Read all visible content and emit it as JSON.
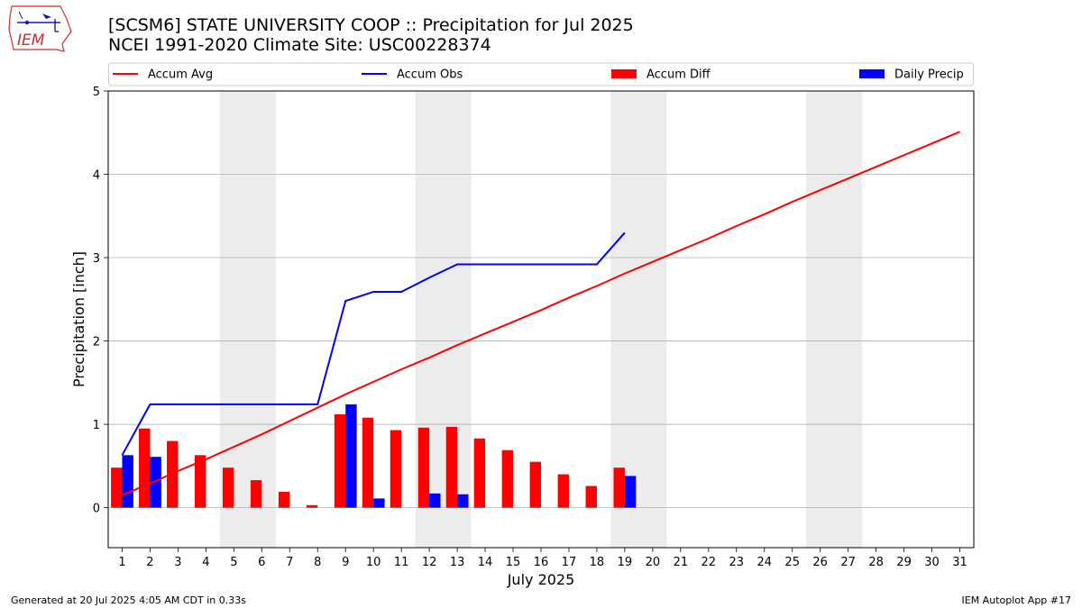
{
  "header": {
    "title_line1": "[SCSM6] STATE UNIVERSITY COOP :: Precipitation for Jul 2025",
    "title_line2": "NCEI 1991-2020 Climate Site: USC00228374",
    "logo_text": "IEM"
  },
  "footer": {
    "generated": "Generated at 20 Jul 2025 4:05 AM CDT in 0.33s",
    "app": "IEM Autoplot App #17"
  },
  "colors": {
    "avg": "#ff0000",
    "obs": "#0000ff",
    "diff": "#ff0000",
    "daily": "#0000ff",
    "weekend": "#ececec",
    "grid": "#b0b0b0"
  },
  "chart_data": {
    "type": "bar",
    "xlabel": "July 2025",
    "ylabel": "Precipitation [inch]",
    "ylim": [
      -0.48,
      5
    ],
    "yticks": [
      0,
      1,
      2,
      3,
      4,
      5
    ],
    "grid": "horizontal",
    "legend_position": "top",
    "legend": [
      "Accum Avg",
      "Accum Obs",
      "Accum Diff",
      "Daily Precip"
    ],
    "days": [
      1,
      2,
      3,
      4,
      5,
      6,
      7,
      8,
      9,
      10,
      11,
      12,
      13,
      14,
      15,
      16,
      17,
      18,
      19,
      20,
      21,
      22,
      23,
      24,
      25,
      26,
      27,
      28,
      29,
      30,
      31
    ],
    "weekend_days": [
      5,
      6,
      12,
      13,
      19,
      20,
      26,
      27
    ],
    "series": [
      {
        "name": "Accum Avg",
        "kind": "line",
        "x": [
          1,
          2,
          3,
          4,
          5,
          6,
          7,
          8,
          9,
          10,
          11,
          12,
          13,
          14,
          15,
          16,
          17,
          18,
          19,
          20,
          21,
          22,
          23,
          24,
          25,
          26,
          27,
          28,
          29,
          30,
          31
        ],
        "values": [
          0.15,
          0.29,
          0.44,
          0.58,
          0.73,
          0.88,
          1.04,
          1.2,
          1.36,
          1.51,
          1.66,
          1.8,
          1.95,
          2.09,
          2.23,
          2.37,
          2.52,
          2.66,
          2.81,
          2.95,
          3.09,
          3.23,
          3.38,
          3.52,
          3.67,
          3.81,
          3.95,
          4.09,
          4.23,
          4.37,
          4.51
        ]
      },
      {
        "name": "Accum Obs",
        "kind": "line",
        "x": [
          1,
          2,
          3,
          4,
          5,
          6,
          7,
          8,
          9,
          10,
          11,
          12,
          13,
          14,
          15,
          16,
          17,
          18,
          19
        ],
        "values": [
          0.63,
          1.24,
          1.24,
          1.24,
          1.24,
          1.24,
          1.24,
          1.24,
          2.48,
          2.59,
          2.59,
          2.76,
          2.92,
          2.92,
          2.92,
          2.92,
          2.92,
          2.92,
          3.3
        ]
      },
      {
        "name": "Accum Diff",
        "kind": "bar",
        "x": [
          1,
          2,
          3,
          4,
          5,
          6,
          7,
          8,
          9,
          10,
          11,
          12,
          13,
          14,
          15,
          16,
          17,
          18,
          19
        ],
        "values": [
          0.48,
          0.95,
          0.8,
          0.63,
          0.48,
          0.33,
          0.19,
          0.03,
          1.12,
          1.08,
          0.93,
          0.96,
          0.97,
          0.83,
          0.69,
          0.55,
          0.4,
          0.26,
          0.48
        ]
      },
      {
        "name": "Daily Precip",
        "kind": "bar",
        "x": [
          1,
          2,
          3,
          4,
          5,
          6,
          7,
          8,
          9,
          10,
          11,
          12,
          13,
          14,
          15,
          16,
          17,
          18,
          19
        ],
        "values": [
          0.63,
          0.61,
          0,
          0,
          0,
          0,
          0,
          0,
          1.24,
          0.11,
          0,
          0.17,
          0.16,
          0,
          0,
          0,
          0,
          0,
          0.38
        ]
      }
    ]
  }
}
